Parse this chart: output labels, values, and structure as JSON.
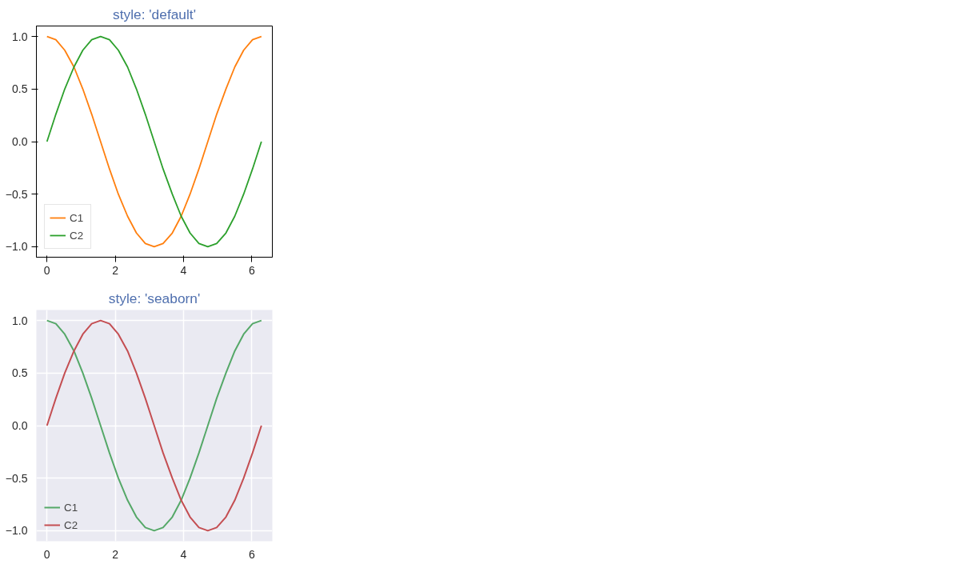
{
  "chart_data": [
    {
      "type": "line",
      "title": "style: 'default'",
      "x": [
        0,
        0.26,
        0.52,
        0.79,
        1.05,
        1.31,
        1.57,
        1.83,
        2.09,
        2.36,
        2.62,
        2.88,
        3.14,
        3.4,
        3.67,
        3.93,
        4.19,
        4.45,
        4.71,
        4.97,
        5.24,
        5.5,
        5.76,
        6.02,
        6.28
      ],
      "series": [
        {
          "name": "C1",
          "color": "#ff7f0e",
          "values": [
            1,
            0.97,
            0.87,
            0.71,
            0.5,
            0.26,
            0,
            -0.26,
            -0.5,
            -0.71,
            -0.87,
            -0.97,
            -1,
            -0.97,
            -0.87,
            -0.71,
            -0.5,
            -0.26,
            0,
            0.26,
            0.5,
            0.71,
            0.87,
            0.97,
            1
          ]
        },
        {
          "name": "C2",
          "color": "#2ca02c",
          "values": [
            0,
            0.26,
            0.5,
            0.71,
            0.87,
            0.97,
            1,
            0.97,
            0.87,
            0.71,
            0.5,
            0.26,
            0,
            -0.26,
            -0.5,
            -0.71,
            -0.87,
            -0.97,
            -1,
            -0.97,
            -0.87,
            -0.71,
            -0.5,
            -0.26,
            0
          ]
        }
      ],
      "xlim": [
        -0.31,
        6.6
      ],
      "ylim": [
        -1.1,
        1.1
      ],
      "xticks": [
        0,
        2,
        4,
        6
      ],
      "yticks": [
        {
          "value": -1,
          "label": "−1.0"
        },
        {
          "value": -0.5,
          "label": "−0.5"
        },
        {
          "value": 0,
          "label": "0.0"
        },
        {
          "value": 0.5,
          "label": "0.5"
        },
        {
          "value": 1,
          "label": "1.0"
        }
      ],
      "grid": false,
      "legend": "bottom left",
      "line_style": "solid"
    },
    {
      "type": "line",
      "title": "style: 'seaborn'",
      "x": [
        0,
        0.26,
        0.52,
        0.79,
        1.05,
        1.31,
        1.57,
        1.83,
        2.09,
        2.36,
        2.62,
        2.88,
        3.14,
        3.4,
        3.67,
        3.93,
        4.19,
        4.45,
        4.71,
        4.97,
        5.24,
        5.5,
        5.76,
        6.02,
        6.28
      ],
      "series": [
        {
          "name": "C1",
          "color": "#55a868",
          "values": [
            1,
            0.97,
            0.87,
            0.71,
            0.5,
            0.26,
            0,
            -0.26,
            -0.5,
            -0.71,
            -0.87,
            -0.97,
            -1,
            -0.97,
            -0.87,
            -0.71,
            -0.5,
            -0.26,
            0,
            0.26,
            0.5,
            0.71,
            0.87,
            0.97,
            1
          ]
        },
        {
          "name": "C2",
          "color": "#c44e52",
          "values": [
            0,
            0.26,
            0.5,
            0.71,
            0.87,
            0.97,
            1,
            0.97,
            0.87,
            0.71,
            0.5,
            0.26,
            0,
            -0.26,
            -0.5,
            -0.71,
            -0.87,
            -0.97,
            -1,
            -0.97,
            -0.87,
            -0.71,
            -0.5,
            -0.26,
            0
          ]
        }
      ],
      "xlim": [
        -0.31,
        6.6
      ],
      "ylim": [
        -1.1,
        1.1
      ],
      "xticks": [
        0,
        2,
        4,
        6
      ],
      "yticks": [
        {
          "value": -1,
          "label": "−1.0"
        },
        {
          "value": -0.5,
          "label": "−0.5"
        },
        {
          "value": 0,
          "label": "0.0"
        },
        {
          "value": 0.5,
          "label": "0.5"
        },
        {
          "value": 1,
          "label": "1.0"
        }
      ],
      "grid": true,
      "legend": "bottom left",
      "line_style": "solid"
    }
  ]
}
